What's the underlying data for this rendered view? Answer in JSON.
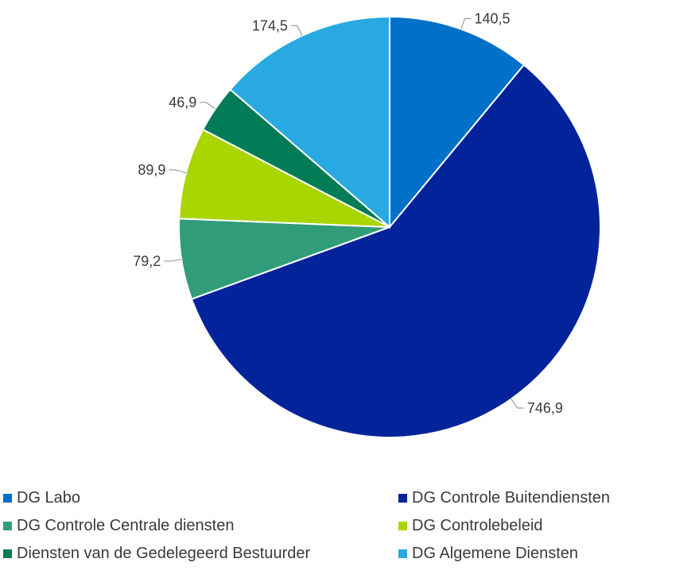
{
  "chart_data": {
    "type": "pie",
    "slices": [
      {
        "label": "DG Labo",
        "value": 140.5,
        "display": "140,5",
        "color": "#0170c8"
      },
      {
        "label": "DG Controle Buitendiensten",
        "value": 746.9,
        "display": "746,9",
        "color": "#03239b"
      },
      {
        "label": "DG Controle Centrale diensten",
        "value": 79.2,
        "display": "79,2",
        "color": "#319c7a"
      },
      {
        "label": "DG Controlebeleid",
        "value": 89.9,
        "display": "89,9",
        "color": "#a9d500"
      },
      {
        "label": "Diensten van de Gedelegeerd Bestuurder",
        "value": 46.9,
        "display": "46,9",
        "color": "#027b57"
      },
      {
        "label": "DG Algemene Diensten",
        "value": 174.5,
        "display": "174,5",
        "color": "#29a9e2"
      }
    ],
    "legend_position": "bottom",
    "start_angle": "12 o'clock",
    "direction": "clockwise"
  }
}
